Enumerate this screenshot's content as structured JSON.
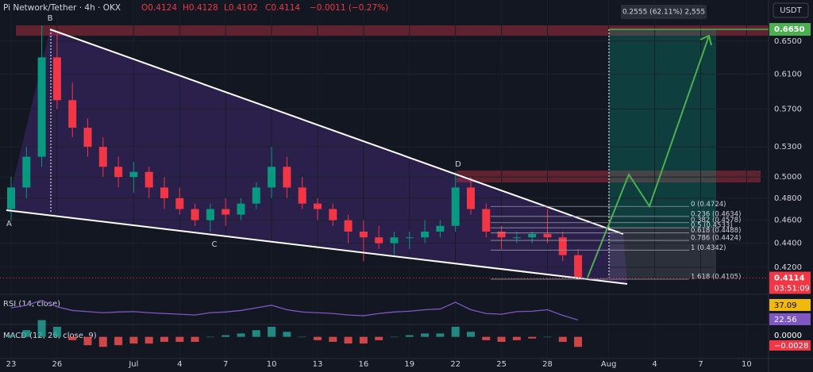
{
  "chart_data": {
    "type": "candlestick",
    "header": {
      "symbol": "Pi Network/Tether · 4h · OKX",
      "ohlc": [
        "O0.4124",
        "H0.4128",
        "L0.4102",
        "C0.4114",
        "−0.0011 (−0.27%)"
      ]
    },
    "currency": "USDT",
    "log_scale": true,
    "categories": [
      "23",
      null,
      null,
      "26",
      null,
      null,
      null,
      null,
      "Jul",
      null,
      null,
      "4",
      null,
      null,
      "7",
      null,
      null,
      "10",
      null,
      null,
      "13",
      null,
      null,
      "16",
      null,
      null,
      "19",
      null,
      null,
      "22",
      null,
      null,
      "25",
      null,
      null,
      "28",
      null,
      null,
      null,
      "Aug",
      null,
      null,
      "4",
      null,
      null,
      "7",
      null,
      null,
      "10"
    ],
    "open": [
      0.47,
      0.49,
      0.52,
      0.63,
      0.58,
      0.55,
      0.53,
      0.51,
      0.5,
      0.505,
      0.49,
      0.48,
      0.47,
      0.46,
      0.47,
      0.465,
      0.475,
      0.49,
      0.51,
      0.49,
      0.475,
      0.47,
      0.46,
      0.45,
      0.445,
      0.44,
      0.445,
      0.445,
      0.45,
      0.455,
      0.49,
      0.47,
      0.45,
      0.445,
      0.445,
      0.448,
      0.445,
      0.43,
      null,
      null,
      null,
      null,
      null,
      null,
      null,
      null,
      null,
      null,
      null
    ],
    "high": [
      0.5,
      0.53,
      0.67,
      0.66,
      0.6,
      0.56,
      0.54,
      0.52,
      0.515,
      0.51,
      0.5,
      0.49,
      0.475,
      0.475,
      0.48,
      0.48,
      0.495,
      0.53,
      0.52,
      0.5,
      0.48,
      0.475,
      0.465,
      0.46,
      0.455,
      0.45,
      0.45,
      0.46,
      0.46,
      0.505,
      0.5,
      0.475,
      0.455,
      0.45,
      0.45,
      0.47,
      0.45,
      0.435,
      null,
      null,
      null,
      null,
      null,
      null,
      null,
      null,
      null,
      null,
      null
    ],
    "low": [
      0.46,
      0.48,
      0.51,
      0.57,
      0.54,
      0.52,
      0.5,
      0.49,
      0.485,
      0.48,
      0.47,
      0.465,
      0.455,
      0.45,
      0.455,
      0.46,
      0.47,
      0.48,
      0.48,
      0.47,
      0.46,
      0.455,
      0.44,
      0.425,
      0.435,
      0.43,
      0.435,
      0.44,
      0.445,
      0.45,
      0.465,
      0.445,
      0.435,
      0.44,
      0.44,
      0.44,
      0.425,
      0.41,
      null,
      null,
      null,
      null,
      null,
      null,
      null,
      null,
      null,
      null,
      null
    ],
    "close": [
      0.49,
      0.52,
      0.63,
      0.58,
      0.55,
      0.53,
      0.51,
      0.5,
      0.505,
      0.49,
      0.48,
      0.47,
      0.46,
      0.47,
      0.465,
      0.475,
      0.49,
      0.51,
      0.49,
      0.475,
      0.47,
      0.46,
      0.45,
      0.445,
      0.44,
      0.445,
      0.445,
      0.45,
      0.455,
      0.49,
      0.47,
      0.45,
      0.445,
      0.445,
      0.448,
      0.445,
      0.43,
      0.4114,
      null,
      null,
      null,
      null,
      null,
      null,
      null,
      null,
      null,
      null,
      null
    ],
    "up_color": "#089981",
    "down_color": "#f23645",
    "ylim": [
      0.3993,
      0.7038
    ],
    "yticks": [
      {
        "value": 0.42,
        "label": "0.4200"
      },
      {
        "value": 0.44,
        "label": "0.4400"
      },
      {
        "value": 0.46,
        "label": "0.4600"
      },
      {
        "value": 0.48,
        "label": "0.4800"
      },
      {
        "value": 0.5,
        "label": "0.5000"
      },
      {
        "value": 0.53,
        "label": "0.5300"
      },
      {
        "value": 0.57,
        "label": "0.5700"
      },
      {
        "value": 0.61,
        "label": "0.6100"
      },
      {
        "value": 0.65,
        "label": "0.6500"
      }
    ],
    "last_price": {
      "value": 0.4114,
      "label": "0.4114"
    },
    "countdown": "03:51:09",
    "target": {
      "value": 0.665,
      "label": "0.6650"
    },
    "measure": "0.2555 (62.11%) 2,555",
    "points": [
      "A",
      "B",
      "C",
      "D"
    ],
    "fib": [
      {
        "value": 0.4724,
        "label": "0 (0.4724)"
      },
      {
        "value": 0.4634,
        "label": "0.236 (0.4634)"
      },
      {
        "value": 0.4578,
        "label": "0.382 (0.4578)"
      },
      {
        "value": 0.4533,
        "label": "0.5 (0.4533)"
      },
      {
        "value": 0.4488,
        "label": "0.618 (0.4488)"
      },
      {
        "value": 0.4424,
        "label": "0.786 (0.4424)"
      },
      {
        "value": 0.4342,
        "label": "1 (0.4342)"
      },
      {
        "value": 0.4105,
        "label": "1.618 (0.4105)"
      }
    ],
    "rsi": {
      "title": "RSI (14, close)",
      "readouts": [
        "37.09",
        "22.56"
      ],
      "color": "#7e57c2",
      "ylim": [
        15,
        85
      ],
      "values": [
        55,
        62,
        75,
        58,
        48,
        45,
        42,
        44,
        45,
        42,
        40,
        38,
        36,
        42,
        44,
        48,
        55,
        62,
        50,
        44,
        42,
        40,
        36,
        34,
        40,
        44,
        46,
        50,
        52,
        70,
        50,
        40,
        38,
        45,
        46,
        50,
        35,
        22.56,
        null,
        null,
        null,
        null,
        null,
        null,
        null,
        null,
        null,
        null,
        null
      ]
    },
    "macd": {
      "title": "MACD (12, 26, close, 9)",
      "readouts": [
        "0.0000",
        "−0.0028"
      ],
      "ylim": [
        -0.012,
        0.006
      ],
      "values": [
        0.001,
        0.004,
        0.01,
        0.006,
        -0.002,
        -0.005,
        -0.006,
        -0.005,
        -0.004,
        -0.004,
        -0.003,
        -0.003,
        -0.003,
        0.0,
        0.001,
        0.002,
        0.004,
        0.006,
        0.003,
        0.0,
        -0.002,
        -0.003,
        -0.004,
        -0.004,
        -0.002,
        0.0,
        0.001,
        0.002,
        0.002,
        0.006,
        0.003,
        -0.002,
        -0.003,
        -0.002,
        -0.001,
        0.0,
        -0.003,
        -0.006,
        null,
        null,
        null,
        null,
        null,
        null,
        null,
        null,
        null,
        null,
        null
      ]
    }
  }
}
